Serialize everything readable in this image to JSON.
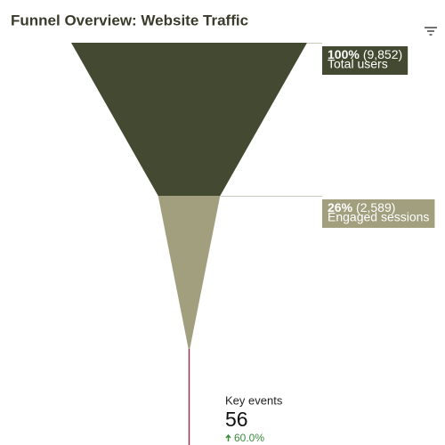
{
  "chart_data": {
    "type": "funnel",
    "title": "Funnel Overview: Website Traffic",
    "categories": [
      "Total users",
      "Engaged sessions",
      "Key events"
    ],
    "values": [
      9852,
      2589,
      56
    ],
    "value_labels": [
      "(9,852)",
      "(2,589)",
      "56"
    ],
    "percents": [
      100,
      26
    ],
    "percent_labels": [
      "100%",
      "26%"
    ],
    "colors": [
      "#434a31",
      "#a19f7e",
      "#8b3a5a"
    ],
    "change": 60.0,
    "change_label": "60.0%",
    "change_color": "#3d8b40"
  }
}
